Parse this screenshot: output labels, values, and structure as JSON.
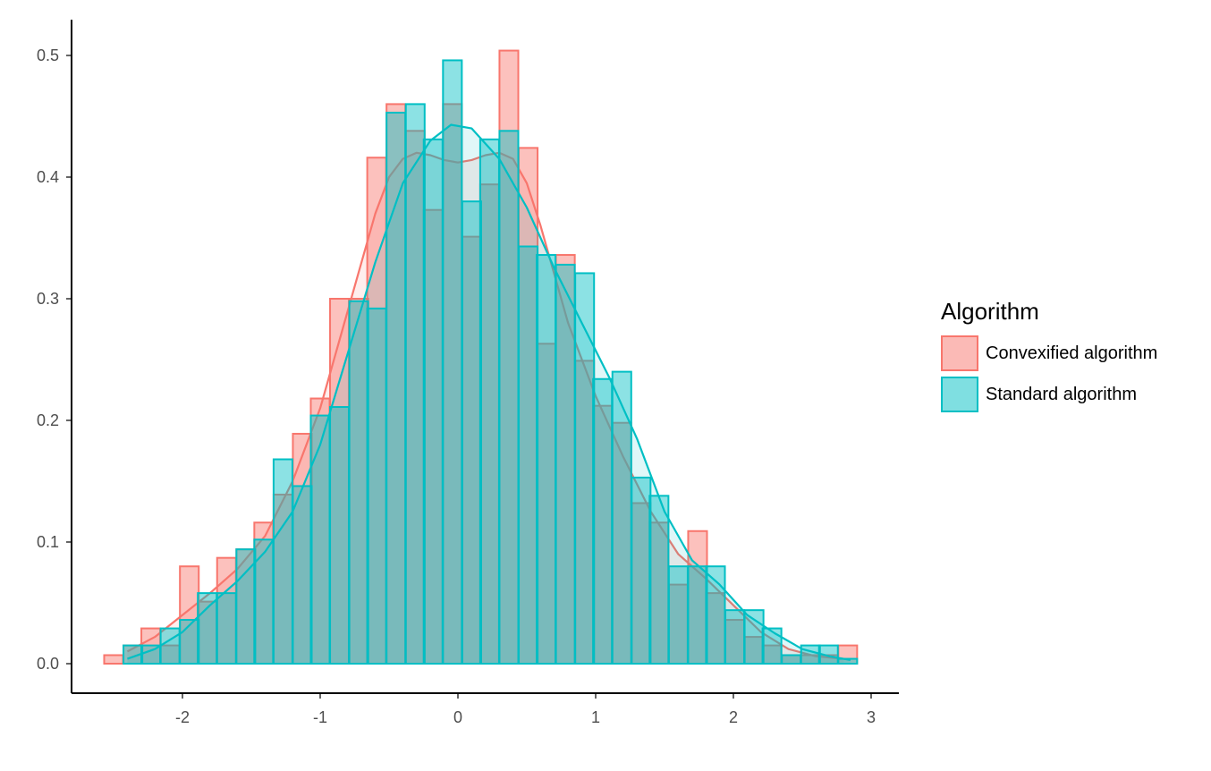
{
  "chart_data": {
    "type": "histogram-density",
    "title": "",
    "xlabel": "",
    "ylabel": "",
    "xlim": [
      -2.6,
      3.2
    ],
    "ylim": [
      -0.02,
      0.53
    ],
    "x_ticks": [
      -2,
      -1,
      0,
      1,
      2,
      3
    ],
    "y_ticks": [
      0.0,
      0.1,
      0.2,
      0.3,
      0.4,
      0.5
    ],
    "y_tick_labels": [
      "0.0",
      "0.1",
      "0.2",
      "0.3",
      "0.4",
      "0.5"
    ],
    "bin_width": 0.1367,
    "legend_title": "Algorithm",
    "series": [
      {
        "name": "Convexified algorithm",
        "color": "#F8766D",
        "bin_centers": [
          -2.5,
          -2.36,
          -2.23,
          -2.09,
          -1.95,
          -1.82,
          -1.68,
          -1.54,
          -1.41,
          -1.27,
          -1.13,
          -1.0,
          -0.86,
          -0.72,
          -0.59,
          -0.45,
          -0.31,
          -0.18,
          -0.04,
          0.1,
          0.23,
          0.37,
          0.51,
          0.64,
          0.78,
          0.92,
          1.05,
          1.19,
          1.33,
          1.46,
          1.6,
          1.74,
          1.87,
          2.01,
          2.15,
          2.28,
          2.42,
          2.56,
          2.69,
          2.83
        ],
        "bin_values": [
          0.007,
          0.015,
          0.029,
          0.015,
          0.08,
          0.051,
          0.087,
          0.094,
          0.116,
          0.139,
          0.189,
          0.218,
          0.3,
          0.3,
          0.416,
          0.46,
          0.438,
          0.373,
          0.46,
          0.351,
          0.394,
          0.504,
          0.424,
          0.263,
          0.336,
          0.249,
          0.212,
          0.198,
          0.132,
          0.116,
          0.065,
          0.109,
          0.058,
          0.036,
          0.022,
          0.015,
          0.007,
          0.007,
          0.007,
          0.015
        ],
        "density_x": [
          -2.4,
          -2.2,
          -2.0,
          -1.8,
          -1.6,
          -1.4,
          -1.2,
          -1.0,
          -0.8,
          -0.6,
          -0.5,
          -0.4,
          -0.3,
          -0.2,
          -0.1,
          0.0,
          0.1,
          0.2,
          0.3,
          0.4,
          0.5,
          0.6,
          0.8,
          1.0,
          1.2,
          1.4,
          1.6,
          1.8,
          2.0,
          2.2,
          2.4,
          2.6,
          2.8
        ],
        "density_y": [
          0.01,
          0.022,
          0.04,
          0.058,
          0.078,
          0.105,
          0.15,
          0.21,
          0.29,
          0.37,
          0.4,
          0.415,
          0.42,
          0.418,
          0.414,
          0.412,
          0.414,
          0.418,
          0.42,
          0.415,
          0.395,
          0.36,
          0.28,
          0.22,
          0.17,
          0.125,
          0.09,
          0.07,
          0.048,
          0.026,
          0.012,
          0.006,
          0.004
        ]
      },
      {
        "name": "Standard algorithm",
        "color": "#00BFC4",
        "bin_centers": [
          -2.36,
          -2.23,
          -2.09,
          -1.95,
          -1.82,
          -1.68,
          -1.54,
          -1.41,
          -1.27,
          -1.13,
          -1.0,
          -0.86,
          -0.72,
          -0.59,
          -0.45,
          -0.31,
          -0.18,
          -0.04,
          0.1,
          0.23,
          0.37,
          0.51,
          0.64,
          0.78,
          0.92,
          1.05,
          1.19,
          1.33,
          1.46,
          1.6,
          1.74,
          1.87,
          2.01,
          2.15,
          2.28,
          2.42,
          2.56,
          2.69,
          2.83
        ],
        "bin_values": [
          0.015,
          0.015,
          0.029,
          0.036,
          0.058,
          0.058,
          0.094,
          0.102,
          0.168,
          0.146,
          0.204,
          0.211,
          0.298,
          0.292,
          0.453,
          0.46,
          0.431,
          0.496,
          0.38,
          0.431,
          0.438,
          0.343,
          0.336,
          0.328,
          0.321,
          0.234,
          0.24,
          0.153,
          0.138,
          0.08,
          0.08,
          0.08,
          0.044,
          0.044,
          0.029,
          0.007,
          0.015,
          0.015,
          0.004
        ],
        "density_x": [
          -2.4,
          -2.2,
          -2.0,
          -1.8,
          -1.6,
          -1.4,
          -1.2,
          -1.0,
          -0.8,
          -0.6,
          -0.4,
          -0.2,
          -0.05,
          0.1,
          0.3,
          0.5,
          0.7,
          0.9,
          1.1,
          1.3,
          1.5,
          1.7,
          1.9,
          2.1,
          2.3,
          2.5,
          2.7,
          2.85
        ],
        "density_y": [
          0.004,
          0.012,
          0.026,
          0.048,
          0.068,
          0.092,
          0.125,
          0.18,
          0.255,
          0.33,
          0.395,
          0.43,
          0.443,
          0.44,
          0.415,
          0.375,
          0.325,
          0.28,
          0.235,
          0.185,
          0.125,
          0.085,
          0.065,
          0.04,
          0.025,
          0.012,
          0.006,
          0.003
        ]
      }
    ]
  }
}
